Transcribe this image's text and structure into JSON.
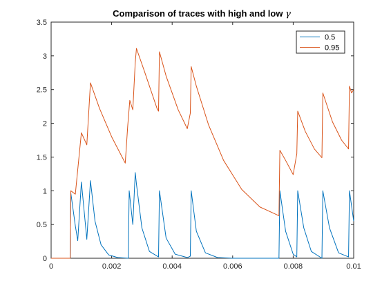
{
  "chart_data": {
    "type": "line",
    "title": "Comparison of traces with high and low ",
    "title_symbol": "γ",
    "xlabel": "",
    "ylabel": "",
    "xlim": [
      0,
      0.01
    ],
    "ylim": [
      0,
      3.5
    ],
    "xticks": [
      0,
      0.002,
      0.004,
      0.006,
      0.008,
      0.01
    ],
    "xtick_labels": [
      "0",
      "0.002",
      "0.004",
      "0.006",
      "0.008",
      "0.01"
    ],
    "yticks": [
      0,
      0.5,
      1,
      1.5,
      2,
      2.5,
      3,
      3.5
    ],
    "ytick_labels": [
      "0",
      "0.5",
      "1",
      "1.5",
      "2",
      "2.5",
      "3",
      "3.5"
    ],
    "grid": false,
    "legend_position": "top-right",
    "series": [
      {
        "name": "0.5",
        "color": "#0072bd",
        "x": [
          0,
          0.00063,
          0.00065,
          0.0008,
          0.00088,
          0.001,
          0.00118,
          0.0013,
          0.00145,
          0.00165,
          0.0019,
          0.0022,
          0.00255,
          0.00258,
          0.0027,
          0.00278,
          0.00282,
          0.003,
          0.00325,
          0.00355,
          0.00358,
          0.0038,
          0.0041,
          0.0045,
          0.0046,
          0.00463,
          0.0048,
          0.0051,
          0.0055,
          0.006,
          0.007,
          0.00753,
          0.00756,
          0.00775,
          0.008,
          0.00812,
          0.00815,
          0.00835,
          0.0086,
          0.00895,
          0.00898,
          0.0092,
          0.0095,
          0.00983,
          0.00986,
          0.01
        ],
        "y": [
          0,
          0,
          0.97,
          0.48,
          0.26,
          1.13,
          0.28,
          1.15,
          0.55,
          0.2,
          0.05,
          0.01,
          0.0,
          1.0,
          0.5,
          1.27,
          1.1,
          0.45,
          0.1,
          0.02,
          1.0,
          0.3,
          0.06,
          0.01,
          0.03,
          1.0,
          0.4,
          0.08,
          0.01,
          0.0,
          0.0,
          0.0,
          1.0,
          0.4,
          0.06,
          0.02,
          1.0,
          0.45,
          0.1,
          0.0,
          1.0,
          0.45,
          0.08,
          0.02,
          1.0,
          0.55
        ]
      },
      {
        "name": "0.95",
        "color": "#d95319",
        "x": [
          0,
          0.00063,
          0.00065,
          0.0008,
          0.001,
          0.00118,
          0.0013,
          0.0016,
          0.002,
          0.00245,
          0.00253,
          0.0026,
          0.0027,
          0.00278,
          0.00282,
          0.0031,
          0.0035,
          0.00355,
          0.00358,
          0.0038,
          0.0042,
          0.0045,
          0.0046,
          0.00463,
          0.0048,
          0.0052,
          0.0057,
          0.0063,
          0.0069,
          0.00753,
          0.00756,
          0.00775,
          0.008,
          0.00812,
          0.00815,
          0.0084,
          0.0087,
          0.00895,
          0.00898,
          0.0093,
          0.0096,
          0.00983,
          0.00986,
          0.00993,
          0.01
        ],
        "y": [
          0,
          0,
          1.0,
          0.95,
          1.86,
          1.68,
          2.6,
          2.22,
          1.8,
          1.41,
          1.95,
          2.34,
          2.2,
          2.9,
          3.11,
          2.75,
          2.22,
          2.18,
          3.06,
          2.7,
          2.2,
          1.92,
          2.15,
          2.84,
          2.55,
          1.98,
          1.45,
          1.02,
          0.76,
          0.63,
          1.6,
          1.45,
          1.24,
          1.55,
          2.18,
          1.88,
          1.62,
          1.49,
          2.45,
          2.02,
          1.75,
          1.62,
          2.55,
          2.45,
          2.5
        ]
      }
    ]
  }
}
